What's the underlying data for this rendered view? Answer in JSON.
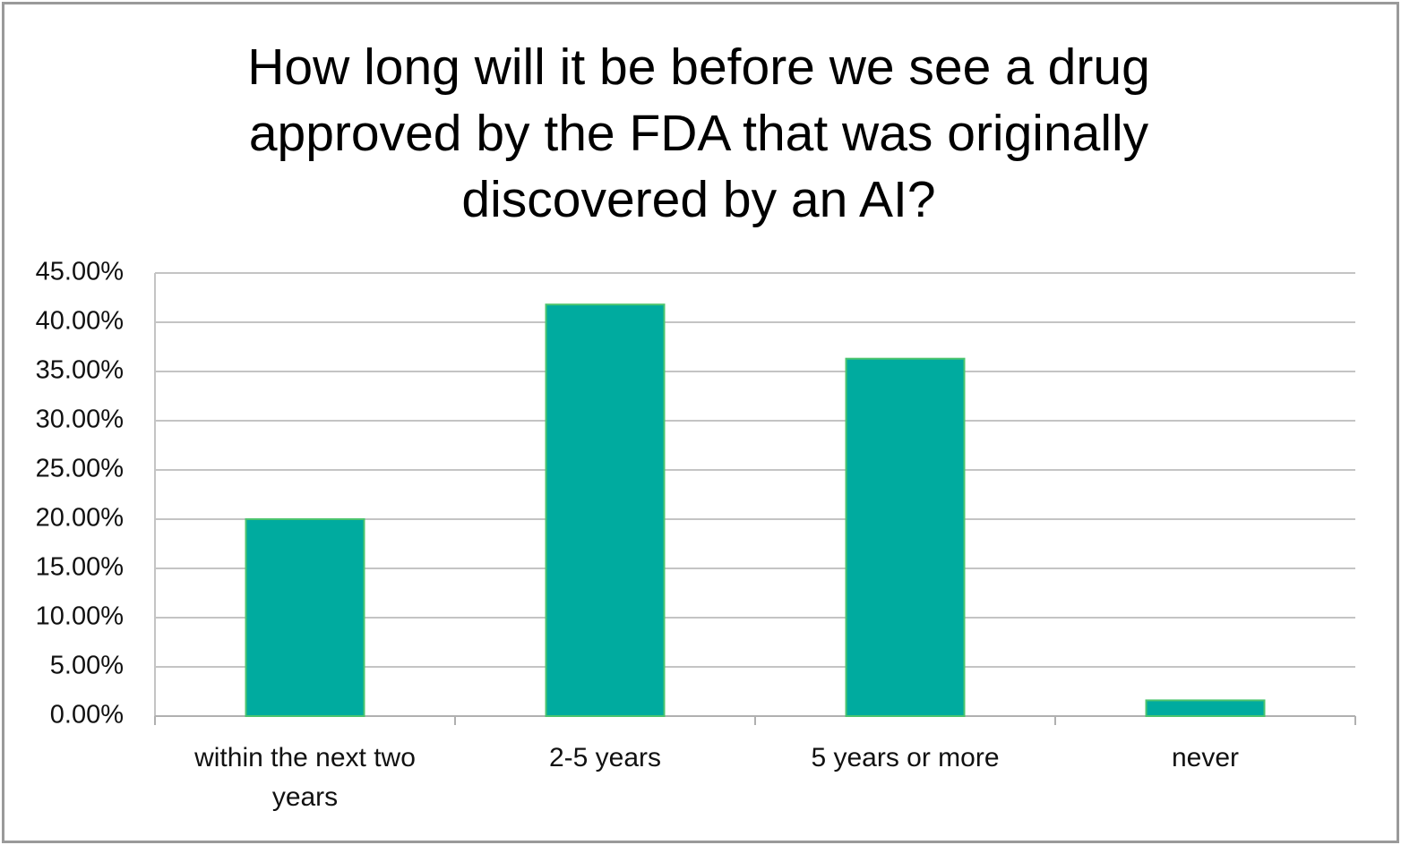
{
  "chart_data": {
    "type": "bar",
    "title": "How long will it be before we see a drug approved by the FDA that was originally discovered by an AI?",
    "categories": [
      "within the next two years",
      "2-5 years",
      "5 years or more",
      "never"
    ],
    "values": [
      20,
      41.8,
      36.3,
      1.6
    ],
    "color": "#00ab9f",
    "ylim": [
      0,
      45
    ],
    "yticks": [
      {
        "value": 0,
        "label": "0.00%"
      },
      {
        "value": 5,
        "label": "5.00%"
      },
      {
        "value": 10,
        "label": "10.00%"
      },
      {
        "value": 15,
        "label": "15.00%"
      },
      {
        "value": 20,
        "label": "20.00%"
      },
      {
        "value": 25,
        "label": "25.00%"
      },
      {
        "value": 30,
        "label": "30.00%"
      },
      {
        "value": 35,
        "label": "35.00%"
      },
      {
        "value": 40,
        "label": "40.00%"
      },
      {
        "value": 45,
        "label": "45.00%"
      }
    ],
    "grid": true
  }
}
